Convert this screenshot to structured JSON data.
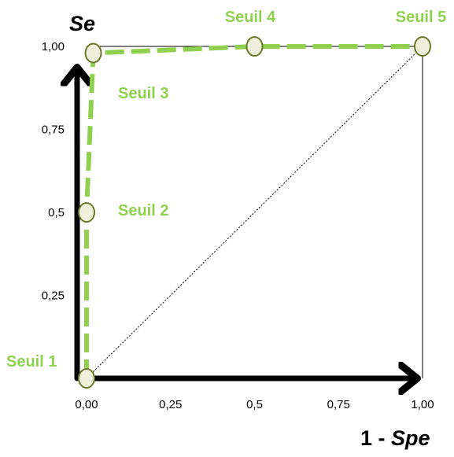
{
  "chart_data": {
    "type": "line",
    "xlabel_prefix": "1 - ",
    "xlabel_italic": "Spe",
    "ylabel": "Se",
    "xlim": [
      0,
      1
    ],
    "ylim": [
      0,
      1
    ],
    "x_ticks": [
      "0,00",
      "0,25",
      "0,5",
      "0,75",
      "1,00"
    ],
    "y_ticks": [
      "0,25",
      "0,5",
      "0,75",
      "1,00"
    ],
    "x_tick_values": [
      0,
      0.25,
      0.5,
      0.75,
      1
    ],
    "y_tick_values": [
      0.25,
      0.5,
      0.75,
      1
    ],
    "points": [
      {
        "label": "Seuil 1",
        "x": 0.0,
        "y": 0.0
      },
      {
        "label": "Seuil 2",
        "x": 0.0,
        "y": 0.5
      },
      {
        "label": "Seuil 3",
        "x": 0.02,
        "y": 0.98
      },
      {
        "label": "Seuil 4",
        "x": 0.5,
        "y": 1.0
      },
      {
        "label": "Seuil 5",
        "x": 1.0,
        "y": 1.0
      }
    ],
    "diagonal": {
      "from": [
        0,
        0
      ],
      "to": [
        1,
        1
      ],
      "style": "dotted"
    },
    "colors": {
      "curve": "#8fd14f",
      "label": "#8fd14f",
      "marker_fill": "#eef0dc",
      "marker_stroke": "#6b7a2a",
      "axis": "#000000"
    }
  }
}
